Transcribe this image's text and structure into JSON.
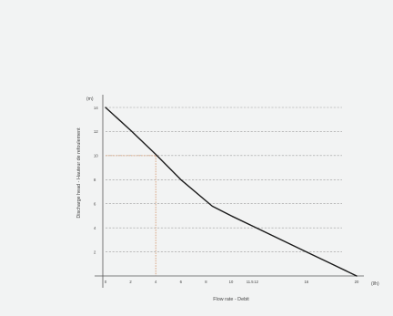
{
  "chart_data": {
    "type": "line",
    "title": "",
    "xlabel": "Flow rate - Debit",
    "ylabel": "Discharge head - Hauteur de refoulement",
    "x_unit": "(l/h)",
    "y_unit": "(m)",
    "xlim": [
      0,
      20
    ],
    "ylim": [
      0,
      14
    ],
    "x_ticks": [
      0,
      2,
      4,
      6,
      8,
      10,
      11.5,
      12,
      16,
      20
    ],
    "x_tick_labels": [
      "0",
      "2",
      "4",
      "6",
      "8",
      "10",
      "11.5",
      "12",
      "16",
      "20"
    ],
    "y_ticks": [
      2,
      4,
      6,
      8,
      10,
      12,
      14
    ],
    "y_tick_labels": [
      "2",
      "4",
      "6",
      "8",
      "10",
      "12",
      "14"
    ],
    "grid": "horizontal dashed",
    "series": [
      {
        "x": [
          0,
          2,
          4,
          6,
          8.5,
          10,
          12,
          14,
          16,
          18,
          20
        ],
        "y": [
          14,
          12.1,
          10.1,
          8,
          5.8,
          5,
          4,
          3,
          2,
          1,
          0
        ]
      }
    ],
    "annotations": [
      {
        "type": "reference-lines",
        "x": 4,
        "y": 10
      }
    ],
    "colors": {
      "curve": "#1a1a1a",
      "grid": "#9c9c9c",
      "reference": "#d4956a",
      "axis": "#555555"
    }
  }
}
